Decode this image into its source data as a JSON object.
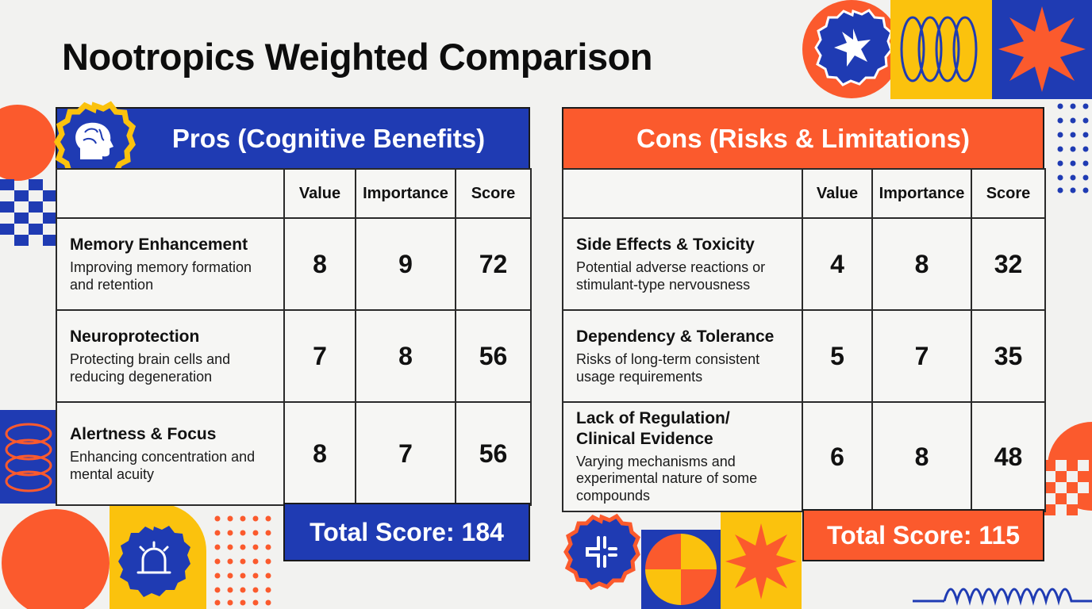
{
  "title": "Nootropics Weighted Comparison",
  "columns": {
    "criterion": "",
    "value": "Value",
    "importance": "Importance",
    "score": "Score"
  },
  "colors": {
    "blue": "#1f3bb3",
    "orange": "#fb5a2d",
    "yellow": "#fbc20d"
  },
  "pros": {
    "heading": "Pros (Cognitive Benefits)",
    "header_icon": "brain-head-icon",
    "rows": [
      {
        "name": "Memory Enhancement",
        "desc": "Improving memory formation and retention",
        "value": "8",
        "importance": "9",
        "score": "72"
      },
      {
        "name": "Neuroprotection",
        "desc": "Protecting brain cells and reducing degeneration",
        "value": "7",
        "importance": "8",
        "score": "56"
      },
      {
        "name": "Alertness & Focus",
        "desc": "Enhancing concentration and mental acuity",
        "value": "8",
        "importance": "7",
        "score": "56"
      }
    ],
    "total": "Total Score: 184"
  },
  "cons": {
    "heading": "Cons (Risks & Limitations)",
    "rows": [
      {
        "name": "Side Effects & Toxicity",
        "desc": "Potential adverse reactions or stimulant-type nervousness",
        "value": "4",
        "importance": "8",
        "score": "32"
      },
      {
        "name": "Dependency & Tolerance",
        "desc": "Risks of long-term consistent usage requirements",
        "value": "5",
        "importance": "7",
        "score": "35"
      },
      {
        "name": "Lack of Regulation/ Clinical Evidence",
        "desc": "Varying mechanisms and experimental nature of some compounds",
        "value": "6",
        "importance": "8",
        "score": "48"
      }
    ],
    "total": "Total Score: 115"
  },
  "decorations": [
    "starburst-badge-icon",
    "alarm-bell-icon",
    "medical-cross-icon"
  ]
}
